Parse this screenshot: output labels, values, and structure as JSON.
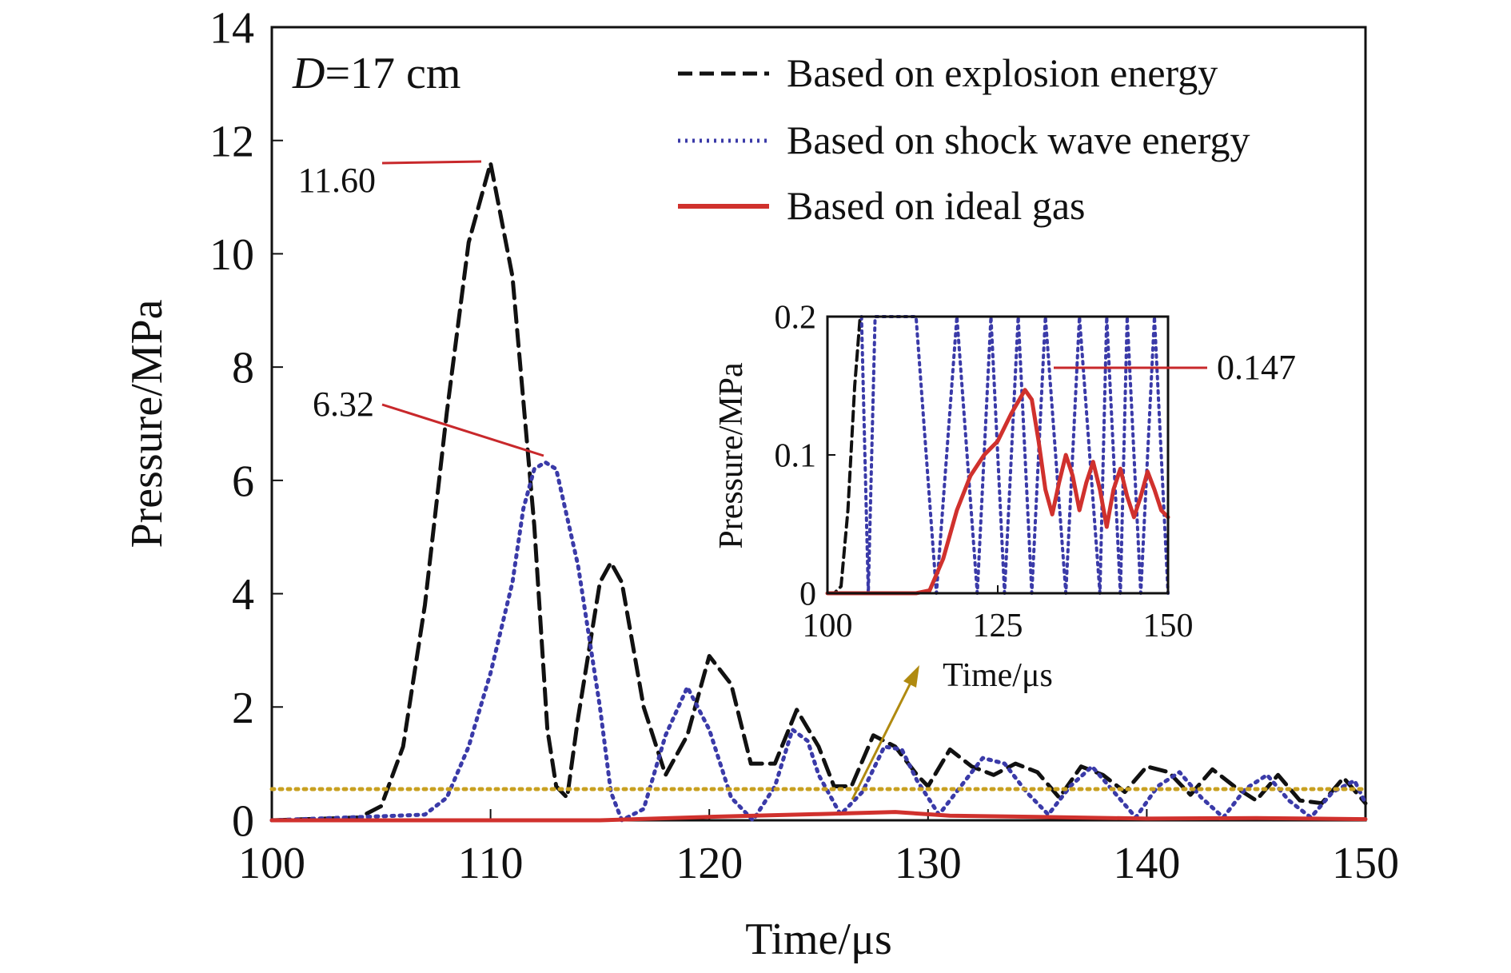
{
  "chart_data": [
    {
      "type": "line",
      "panel": "main",
      "xlabel": "Time/μs",
      "ylabel": "Pressure/MPa",
      "xlim": [
        100,
        150
      ],
      "ylim": [
        0,
        14
      ],
      "xticks": [
        100,
        110,
        120,
        130,
        140,
        150
      ],
      "yticks": [
        0,
        2,
        4,
        6,
        8,
        10,
        12,
        14
      ],
      "panel_label": {
        "var": "D",
        "rest": "=17 cm"
      },
      "legend_position": "top-right",
      "grid": false,
      "series": [
        {
          "name": "Based on explosion energy",
          "color": "#111111",
          "style": "dashed",
          "x": [
            100,
            104,
            105,
            106,
            107,
            108,
            109,
            110,
            111,
            112,
            112.6,
            113,
            113.5,
            114,
            115,
            115.5,
            116,
            117,
            118,
            119,
            120,
            121,
            121.9,
            123,
            124,
            125,
            125.7,
            126.5,
            127.5,
            128.5,
            129.5,
            130,
            131,
            132,
            133,
            134,
            135,
            136,
            137,
            138,
            139,
            140,
            141,
            142,
            143,
            144,
            145,
            146,
            147,
            148,
            149,
            150
          ],
          "y": [
            0,
            0.05,
            0.25,
            1.3,
            3.8,
            7.2,
            10.2,
            11.6,
            9.6,
            5.2,
            1.6,
            0.6,
            0.4,
            1.8,
            4.2,
            4.55,
            4.2,
            2.0,
            0.8,
            1.5,
            2.9,
            2.4,
            1.0,
            1.0,
            1.95,
            1.3,
            0.6,
            0.6,
            1.5,
            1.3,
            0.8,
            0.6,
            1.25,
            0.95,
            0.8,
            1.0,
            0.85,
            0.4,
            0.95,
            0.8,
            0.5,
            0.95,
            0.85,
            0.45,
            0.9,
            0.6,
            0.35,
            0.8,
            0.35,
            0.3,
            0.75,
            0.3
          ]
        },
        {
          "name": "Based on shock wave energy",
          "color": "#3a3aa8",
          "style": "dotted",
          "x": [
            100,
            107,
            108,
            109,
            110,
            111,
            111.5,
            112,
            112.5,
            113,
            114,
            115,
            115.5,
            116,
            117,
            118,
            119,
            120,
            121,
            122,
            123,
            123.8,
            124.5,
            125,
            126,
            127,
            128,
            128.8,
            129.5,
            130.5,
            131.5,
            132.5,
            133.5,
            134.5,
            135.5,
            136.5,
            137.5,
            138.5,
            139.5,
            140.5,
            141.5,
            142.5,
            143.5,
            144.5,
            145.5,
            146.5,
            147.5,
            148.5,
            149.5,
            150
          ],
          "y": [
            0,
            0.1,
            0.4,
            1.3,
            2.6,
            4.2,
            5.5,
            6.2,
            6.32,
            6.2,
            4.5,
            2.0,
            0.5,
            0,
            0.2,
            1.5,
            2.35,
            1.6,
            0.4,
            0,
            0.6,
            1.6,
            1.4,
            0.8,
            0.1,
            0.5,
            1.3,
            1.25,
            0.7,
            0.1,
            0.6,
            1.1,
            1.0,
            0.5,
            0.1,
            0.6,
            0.95,
            0.5,
            0.05,
            0.6,
            0.85,
            0.4,
            0.05,
            0.55,
            0.8,
            0.35,
            0.05,
            0.5,
            0.7,
            0.3
          ]
        },
        {
          "name": "Based on ideal gas",
          "color": "#d0312d",
          "style": "solid",
          "x": [
            100,
            115,
            120,
            125,
            128.5,
            131,
            135,
            140,
            145,
            150
          ],
          "y": [
            0,
            0,
            0.06,
            0.11,
            0.147,
            0.08,
            0.06,
            0.03,
            0.04,
            0.02
          ]
        },
        {
          "name": "",
          "color": "#c8a020",
          "style": "dotted",
          "x": [
            100,
            150
          ],
          "y": [
            0.55,
            0.55
          ]
        }
      ],
      "annotations": [
        {
          "text": "11.60",
          "x": 110,
          "y": 11.6
        },
        {
          "text": "6.32",
          "x": 112.5,
          "y": 6.32
        }
      ]
    },
    {
      "type": "line",
      "panel": "inset",
      "xlabel": "Time/μs",
      "ylabel": "Pressure/MPa",
      "xlim": [
        100,
        150
      ],
      "ylim": [
        0,
        0.2
      ],
      "xticks": [
        100,
        125,
        150
      ],
      "yticks": [
        0,
        0.1,
        0.2
      ],
      "series": [
        {
          "name": "Based on explosion energy",
          "color": "#111111",
          "style": "dashed",
          "x": [
            100,
            101,
            102,
            103,
            104,
            104.8
          ],
          "y": [
            0,
            0,
            0.005,
            0.06,
            0.15,
            0.2
          ]
        },
        {
          "name": "Based on shock wave energy",
          "color": "#3a3aa8",
          "style": "dotted",
          "oscillation": {
            "minima_x": [
              106,
              116,
              122,
              126,
              130,
              135,
              140,
              143,
              146,
              150
            ],
            "maxima_x": [
              107,
              113,
              119,
              124,
              128,
              132,
              137,
              141,
              144,
              148
            ]
          }
        },
        {
          "name": "Based on ideal gas",
          "color": "#d0312d",
          "style": "solid",
          "x": [
            100,
            113,
            115,
            117,
            119,
            121,
            123,
            125,
            127,
            129,
            130,
            131,
            132,
            133,
            134,
            135,
            136,
            137,
            138,
            139,
            140,
            141,
            142,
            143,
            144,
            145,
            146,
            147,
            148,
            149,
            150
          ],
          "y": [
            0,
            0,
            0.002,
            0.025,
            0.06,
            0.085,
            0.1,
            0.11,
            0.13,
            0.147,
            0.14,
            0.11,
            0.075,
            0.057,
            0.08,
            0.1,
            0.085,
            0.06,
            0.08,
            0.095,
            0.075,
            0.048,
            0.075,
            0.09,
            0.07,
            0.055,
            0.07,
            0.088,
            0.075,
            0.06,
            0.055
          ]
        }
      ],
      "annotations": [
        {
          "text": "0.147",
          "x": 129,
          "y": 0.147
        }
      ]
    }
  ]
}
